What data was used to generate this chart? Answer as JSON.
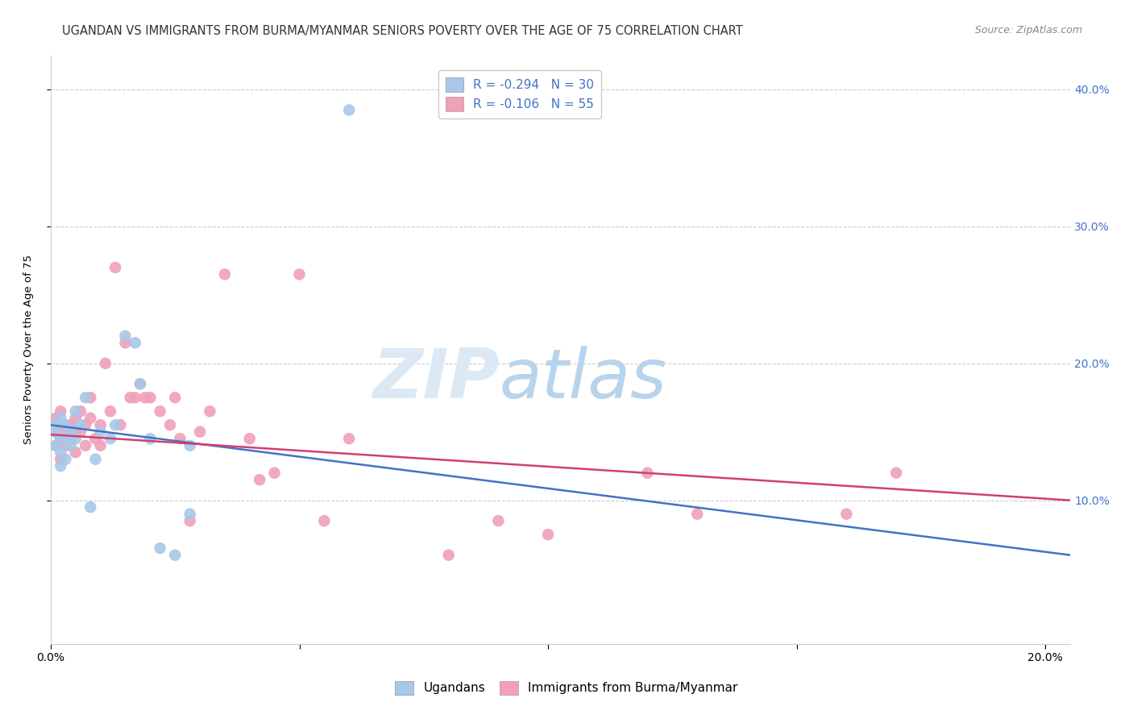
{
  "title": "UGANDAN VS IMMIGRANTS FROM BURMA/MYANMAR SENIORS POVERTY OVER THE AGE OF 75 CORRELATION CHART",
  "source": "Source: ZipAtlas.com",
  "ylabel": "Seniors Poverty Over the Age of 75",
  "xlim": [
    0.0,
    0.205
  ],
  "ylim": [
    -0.005,
    0.425
  ],
  "yticks": [
    0.1,
    0.2,
    0.3,
    0.4
  ],
  "ytick_labels": [
    "10.0%",
    "20.0%",
    "30.0%",
    "40.0%"
  ],
  "xticks": [
    0.0,
    0.05,
    0.1,
    0.15,
    0.2
  ],
  "xtick_labels": [
    "0.0%",
    "",
    "",
    "",
    "20.0%"
  ],
  "color_blue": "#a8c8e8",
  "color_pink": "#f0a0b8",
  "line_color_blue": "#4472c4",
  "line_color_pink": "#d04070",
  "text_color_blue": "#4472c4",
  "watermark_zip": "ZIP",
  "watermark_atlas": "atlas",
  "watermark_color_zip": "#dce9f5",
  "watermark_color_atlas": "#b8d4ed",
  "ugandan_x": [
    0.001,
    0.001,
    0.001,
    0.002,
    0.002,
    0.002,
    0.002,
    0.003,
    0.003,
    0.003,
    0.004,
    0.004,
    0.005,
    0.005,
    0.006,
    0.007,
    0.008,
    0.009,
    0.01,
    0.012,
    0.013,
    0.015,
    0.017,
    0.018,
    0.02,
    0.022,
    0.025,
    0.028,
    0.028,
    0.06
  ],
  "ugandan_y": [
    0.155,
    0.15,
    0.14,
    0.16,
    0.145,
    0.135,
    0.125,
    0.155,
    0.145,
    0.13,
    0.15,
    0.14,
    0.165,
    0.145,
    0.155,
    0.175,
    0.095,
    0.13,
    0.15,
    0.145,
    0.155,
    0.22,
    0.215,
    0.185,
    0.145,
    0.065,
    0.06,
    0.14,
    0.09,
    0.385
  ],
  "burma_x": [
    0.001,
    0.001,
    0.001,
    0.002,
    0.002,
    0.002,
    0.002,
    0.003,
    0.003,
    0.003,
    0.004,
    0.004,
    0.005,
    0.005,
    0.005,
    0.006,
    0.006,
    0.007,
    0.007,
    0.008,
    0.008,
    0.009,
    0.01,
    0.01,
    0.011,
    0.012,
    0.013,
    0.014,
    0.015,
    0.016,
    0.017,
    0.018,
    0.019,
    0.02,
    0.022,
    0.024,
    0.025,
    0.026,
    0.028,
    0.03,
    0.032,
    0.035,
    0.04,
    0.042,
    0.045,
    0.05,
    0.055,
    0.06,
    0.08,
    0.09,
    0.1,
    0.12,
    0.13,
    0.16,
    0.17
  ],
  "burma_y": [
    0.16,
    0.15,
    0.14,
    0.165,
    0.155,
    0.145,
    0.13,
    0.155,
    0.15,
    0.14,
    0.155,
    0.145,
    0.16,
    0.15,
    0.135,
    0.165,
    0.15,
    0.155,
    0.14,
    0.175,
    0.16,
    0.145,
    0.155,
    0.14,
    0.2,
    0.165,
    0.27,
    0.155,
    0.215,
    0.175,
    0.175,
    0.185,
    0.175,
    0.175,
    0.165,
    0.155,
    0.175,
    0.145,
    0.085,
    0.15,
    0.165,
    0.265,
    0.145,
    0.115,
    0.12,
    0.265,
    0.085,
    0.145,
    0.06,
    0.085,
    0.075,
    0.12,
    0.09,
    0.09,
    0.12
  ],
  "blue_line": [
    [
      0.0,
      0.205
    ],
    [
      0.155,
      0.06
    ]
  ],
  "pink_line": [
    [
      0.0,
      0.205
    ],
    [
      0.148,
      0.1
    ]
  ],
  "title_fontsize": 10.5,
  "axis_fontsize": 9.5,
  "tick_fontsize": 10,
  "legend_fontsize": 11
}
